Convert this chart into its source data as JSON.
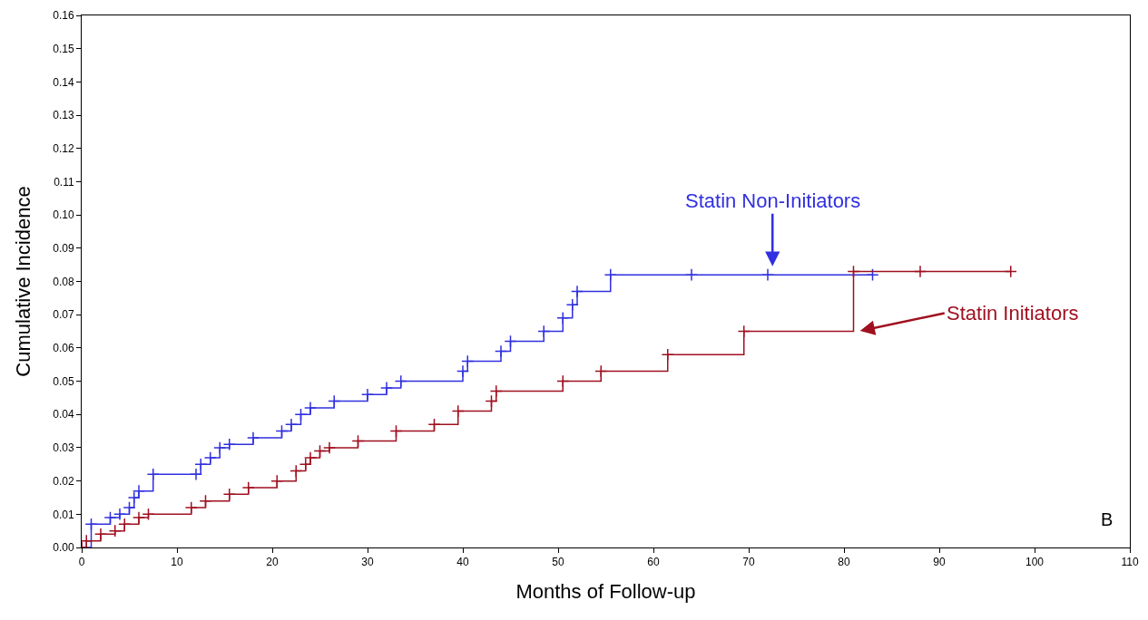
{
  "chart_data": {
    "type": "step",
    "xlabel": "Months of Follow-up",
    "ylabel": "Cumulative Incidence",
    "xlim": [
      0,
      110
    ],
    "xticks": [
      0,
      10,
      20,
      30,
      40,
      50,
      60,
      70,
      80,
      90,
      100,
      110
    ],
    "ylim": [
      0,
      0.16
    ],
    "yticks": [
      {
        "value": 0,
        "label": "0.00"
      },
      {
        "value": 0.01,
        "label": "0.01"
      },
      {
        "value": 0.02,
        "label": "0.02"
      },
      {
        "value": 0.03,
        "label": "0.03"
      },
      {
        "value": 0.04,
        "label": "0.04"
      },
      {
        "value": 0.05,
        "label": "0.05"
      },
      {
        "value": 0.06,
        "label": "0.06"
      },
      {
        "value": 0.07,
        "label": "0.07"
      },
      {
        "value": 0.08,
        "label": "0.08"
      },
      {
        "value": 0.09,
        "label": "0.09"
      },
      {
        "value": 0.1,
        "label": "0.10"
      },
      {
        "value": 0.11,
        "label": "0.11"
      },
      {
        "value": 0.12,
        "label": "0.12"
      },
      {
        "value": 0.13,
        "label": "0.13"
      },
      {
        "value": 0.14,
        "label": "0.14"
      },
      {
        "value": 0.15,
        "label": "0.15"
      },
      {
        "value": 0.16,
        "label": "0.16"
      }
    ],
    "grid": false,
    "marker": "cross",
    "line_style": "solid",
    "series": [
      {
        "color": "#3030e0",
        "x": [
          0,
          1,
          3,
          4,
          5,
          5.5,
          6,
          7.5,
          12,
          12.5,
          13.5,
          14.5,
          15.5,
          18,
          21,
          22,
          23,
          24,
          26.5,
          30,
          32,
          33.5,
          40,
          40.5,
          44,
          45,
          48.5,
          50.5,
          51.5,
          52,
          55.5,
          64,
          72,
          83
        ],
        "values": [
          0,
          0.007,
          0.009,
          0.01,
          0.012,
          0.015,
          0.017,
          0.022,
          0.022,
          0.025,
          0.027,
          0.03,
          0.031,
          0.033,
          0.035,
          0.037,
          0.04,
          0.042,
          0.044,
          0.046,
          0.048,
          0.05,
          0.053,
          0.056,
          0.059,
          0.062,
          0.065,
          0.069,
          0.073,
          0.077,
          0.082,
          0.082,
          0.082,
          0.082
        ]
      },
      {
        "color": "#a01020",
        "x": [
          0,
          0.5,
          2,
          3.5,
          4.5,
          6,
          7,
          11.5,
          13,
          15.5,
          17.5,
          20.5,
          22.5,
          23.5,
          24,
          25,
          26,
          29,
          33,
          37,
          39.5,
          43,
          43.5,
          50.5,
          54.5,
          61.5,
          69.5,
          81,
          88,
          97.5
        ],
        "values": [
          0,
          0.002,
          0.004,
          0.005,
          0.007,
          0.009,
          0.01,
          0.012,
          0.014,
          0.016,
          0.018,
          0.02,
          0.023,
          0.025,
          0.027,
          0.029,
          0.03,
          0.032,
          0.035,
          0.037,
          0.041,
          0.044,
          0.047,
          0.05,
          0.053,
          0.058,
          0.065,
          0.083,
          0.083,
          0.083
        ]
      }
    ],
    "annotations": [
      {
        "text": "Statin Non-Initiators",
        "x": 72.5,
        "y": 0.084
      },
      {
        "text": "Statin Initiators",
        "x": 81.5,
        "y": 0.065
      },
      "B"
    ]
  }
}
